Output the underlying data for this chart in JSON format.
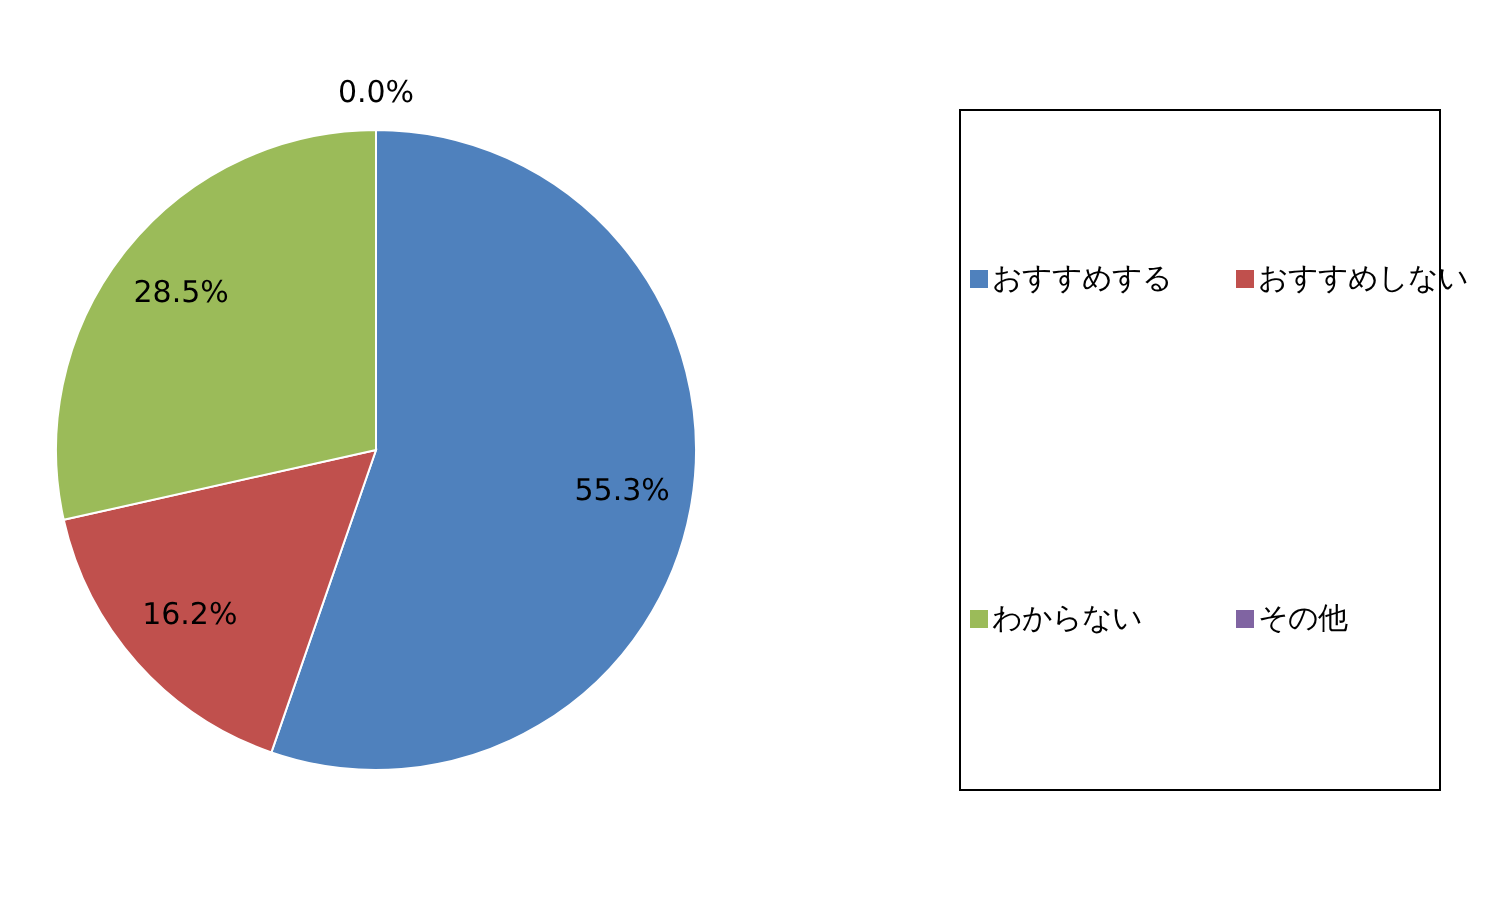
{
  "chart_data": {
    "type": "pie",
    "categories": [
      "おすすめする",
      "おすすめしない",
      "わからない",
      "その他"
    ],
    "values": [
      55.3,
      16.2,
      28.5,
      0.0
    ],
    "colors": [
      "#4f81bd",
      "#c0504d",
      "#9bbb59",
      "#8064a2"
    ],
    "value_labels": [
      "55.3%",
      "16.2%",
      "28.5%",
      "0.0%"
    ],
    "legend": "right"
  }
}
